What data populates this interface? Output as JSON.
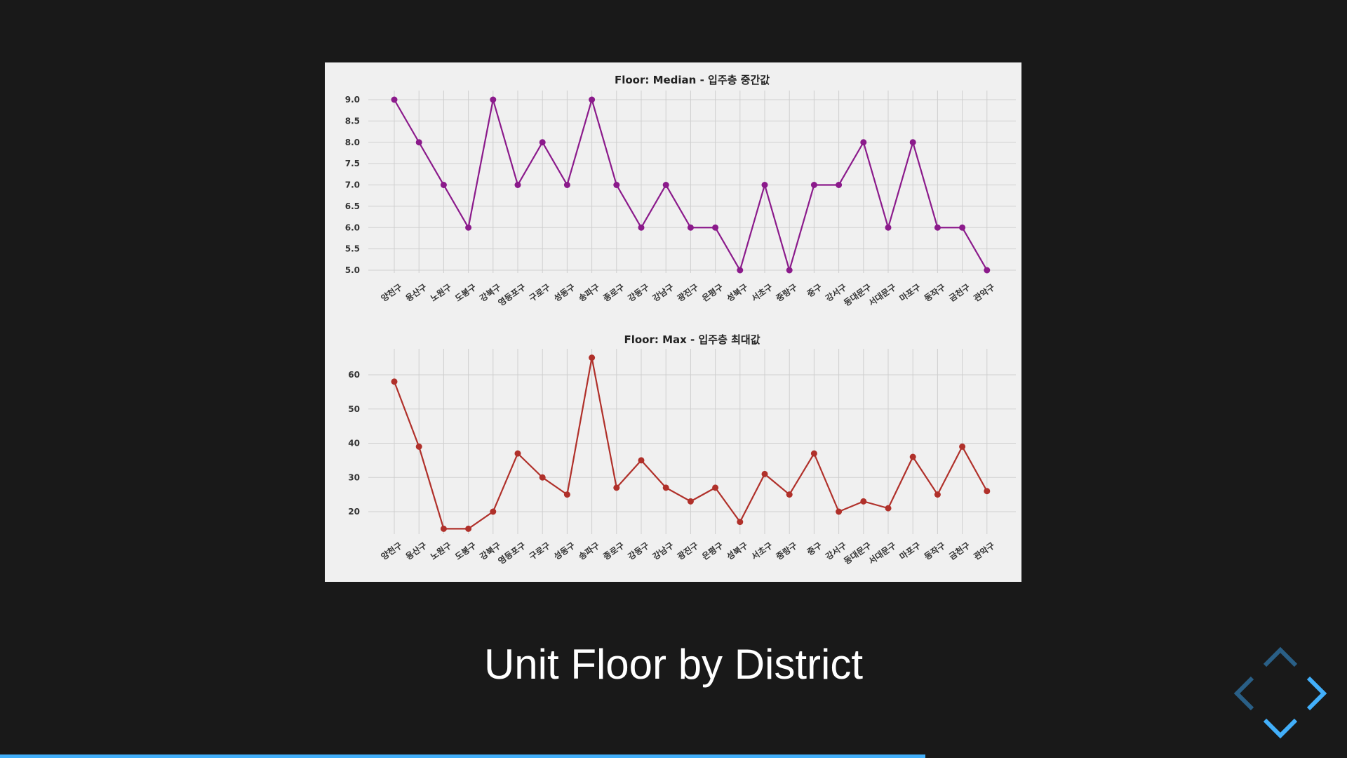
{
  "slide": {
    "title": "Unit Floor by District",
    "progress": 0.687
  },
  "colors": {
    "background": "#191919",
    "figure_bg": "#f0f0f0",
    "median_line": "#8b1a8b",
    "max_line": "#b0302a",
    "accent": "#42affa"
  },
  "nav": {
    "up": "chevron-up-icon",
    "down": "chevron-down-icon",
    "left": "chevron-left-icon",
    "right": "chevron-right-icon"
  },
  "chart_data": [
    {
      "type": "line",
      "title": "Floor: Median - 입주층 중간값",
      "categories": [
        "양천구",
        "용산구",
        "노원구",
        "도봉구",
        "강북구",
        "영등포구",
        "구로구",
        "성동구",
        "송파구",
        "종로구",
        "강동구",
        "강남구",
        "광진구",
        "은평구",
        "성북구",
        "서초구",
        "중랑구",
        "중구",
        "강서구",
        "동대문구",
        "서대문구",
        "마포구",
        "동작구",
        "금천구",
        "관악구"
      ],
      "values": [
        9,
        8,
        7,
        6,
        9,
        7,
        8,
        7,
        9,
        7,
        6,
        7,
        6,
        6,
        5,
        7,
        5,
        7,
        7,
        8,
        6,
        8,
        6,
        6,
        5
      ],
      "ylim": [
        5.0,
        9.0
      ],
      "yticks": [
        "5.0",
        "5.5",
        "6.0",
        "6.5",
        "7.0",
        "7.5",
        "8.0",
        "8.5",
        "9.0"
      ],
      "grid": true,
      "xlabel": "",
      "ylabel": ""
    },
    {
      "type": "line",
      "title": "Floor: Max - 입주층 최대값",
      "categories": [
        "양천구",
        "용산구",
        "노원구",
        "도봉구",
        "강북구",
        "영등포구",
        "구로구",
        "성동구",
        "송파구",
        "종로구",
        "강동구",
        "강남구",
        "광진구",
        "은평구",
        "성북구",
        "서초구",
        "중랑구",
        "중구",
        "강서구",
        "동대문구",
        "서대문구",
        "마포구",
        "동작구",
        "금천구",
        "관악구"
      ],
      "values": [
        58,
        39,
        15,
        15,
        20,
        37,
        30,
        25,
        65,
        27,
        35,
        27,
        23,
        27,
        17,
        31,
        25,
        37,
        20,
        23,
        21,
        36,
        25,
        39,
        26
      ],
      "ylim": [
        20,
        60
      ],
      "yticks": [
        "20",
        "30",
        "40",
        "50",
        "60"
      ],
      "grid": true,
      "xlabel": "",
      "ylabel": ""
    }
  ]
}
